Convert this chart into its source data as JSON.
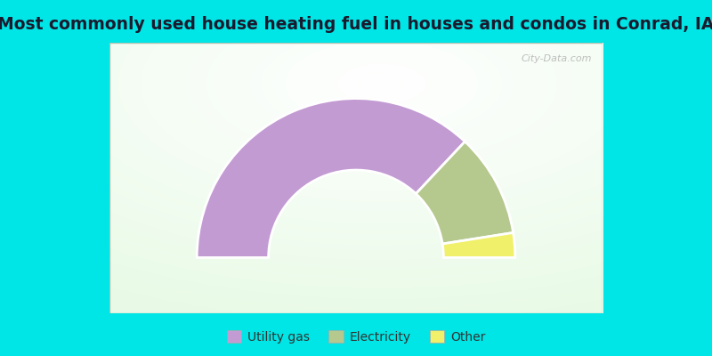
{
  "title": "Most commonly used house heating fuel in houses and condos in Conrad, IA",
  "title_fontsize": 13.5,
  "title_color": "#1a1a2e",
  "background_color": "#00e5e5",
  "slices": [
    {
      "label": "Utility gas",
      "value": 74,
      "color": "#c39bd3"
    },
    {
      "label": "Electricity",
      "value": 21,
      "color": "#b5c98e"
    },
    {
      "label": "Other",
      "value": 5,
      "color": "#f0f06a"
    }
  ],
  "watermark": "City-Data.com",
  "outer_r": 1.0,
  "inner_r": 0.55,
  "legend_fontsize": 10,
  "chart_border_color": "#b0c0b0"
}
